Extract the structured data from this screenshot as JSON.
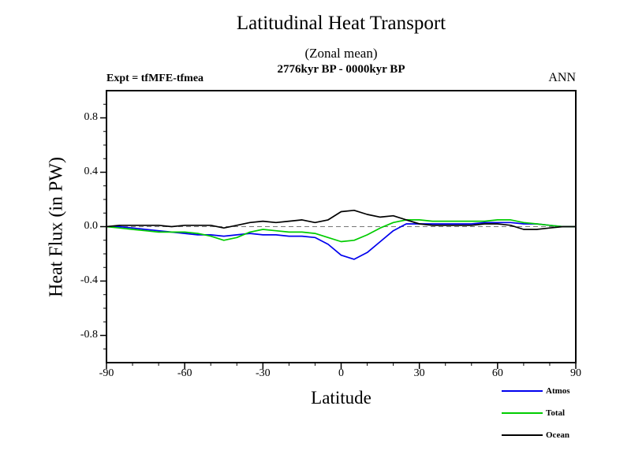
{
  "header": {
    "title": "Latitudinal Heat Transport",
    "subtitle": "(Zonal mean)",
    "period": "2776kyr BP - 0000kyr BP",
    "expt": "Expt = tfMFE-tfmea",
    "season": "ANN"
  },
  "chart_data": {
    "type": "line",
    "title": "Latitudinal Heat Transport",
    "subtitle": "(Zonal mean)",
    "annotation": "2776kyr BP - 0000kyr BP",
    "xlabel": "Latitude",
    "ylabel": "Heat Flux (in PW)",
    "xlim": [
      -90,
      90
    ],
    "ylim": [
      -1.0,
      1.0
    ],
    "x_ticks": [
      -90,
      -60,
      -30,
      0,
      30,
      60,
      90
    ],
    "x_tick_labels": [
      "-90",
      "-60",
      "-30",
      "0",
      "30",
      "60",
      "90"
    ],
    "y_ticks": [
      -0.8,
      -0.4,
      0.0,
      0.4,
      0.8
    ],
    "y_tick_labels": [
      "-0.8",
      "-0.4",
      "0.0",
      "0.4",
      "0.8"
    ],
    "zero_line": true,
    "grid": false,
    "legend_position": "bottom-right",
    "x": [
      -90,
      -85,
      -80,
      -75,
      -70,
      -65,
      -60,
      -55,
      -50,
      -45,
      -40,
      -35,
      -30,
      -25,
      -20,
      -15,
      -10,
      -5,
      0,
      5,
      10,
      15,
      20,
      25,
      30,
      35,
      40,
      45,
      50,
      55,
      60,
      65,
      70,
      75,
      80,
      85,
      90
    ],
    "series": [
      {
        "name": "Atmos",
        "color": "#0000ee",
        "values": [
          0.0,
          0.0,
          -0.01,
          -0.02,
          -0.03,
          -0.04,
          -0.05,
          -0.06,
          -0.06,
          -0.07,
          -0.06,
          -0.05,
          -0.06,
          -0.06,
          -0.07,
          -0.07,
          -0.08,
          -0.13,
          -0.21,
          -0.24,
          -0.19,
          -0.11,
          -0.03,
          0.02,
          0.02,
          0.02,
          0.02,
          0.02,
          0.02,
          0.03,
          0.03,
          0.03,
          0.02,
          0.02,
          0.01,
          0.0,
          0.0
        ]
      },
      {
        "name": "Total",
        "color": "#00cc00",
        "values": [
          0.0,
          -0.01,
          -0.02,
          -0.03,
          -0.04,
          -0.04,
          -0.04,
          -0.05,
          -0.07,
          -0.1,
          -0.08,
          -0.04,
          -0.02,
          -0.03,
          -0.04,
          -0.04,
          -0.05,
          -0.08,
          -0.11,
          -0.1,
          -0.06,
          -0.01,
          0.03,
          0.05,
          0.05,
          0.04,
          0.04,
          0.04,
          0.04,
          0.04,
          0.05,
          0.05,
          0.03,
          0.02,
          0.01,
          0.0,
          0.0
        ]
      },
      {
        "name": "Ocean",
        "color": "#000000",
        "values": [
          0.0,
          0.01,
          0.01,
          0.01,
          0.01,
          0.0,
          0.01,
          0.01,
          0.01,
          -0.01,
          0.01,
          0.03,
          0.04,
          0.03,
          0.04,
          0.05,
          0.03,
          0.05,
          0.11,
          0.12,
          0.09,
          0.07,
          0.08,
          0.05,
          0.02,
          0.01,
          0.01,
          0.01,
          0.01,
          0.02,
          0.02,
          0.01,
          -0.02,
          -0.02,
          -0.01,
          0.0,
          0.0
        ]
      }
    ]
  }
}
